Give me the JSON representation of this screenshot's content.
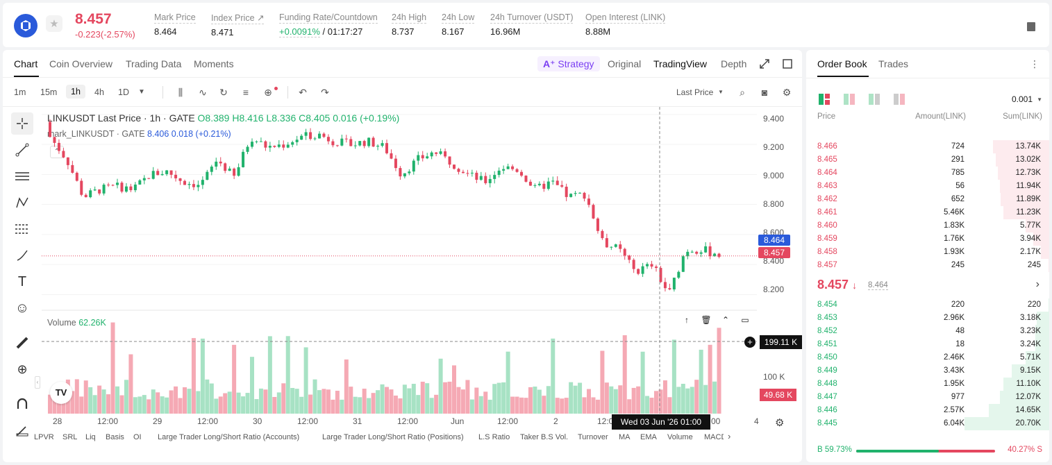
{
  "header": {
    "last_price": "8.457",
    "change": "-0.223(-2.57%)",
    "stats": [
      {
        "label": "Mark Price",
        "value": "8.464"
      },
      {
        "label": "Index Price ↗",
        "value": "8.471"
      },
      {
        "label": "Funding Rate/Countdown",
        "value_green": "+0.0091%",
        "value": " / 01:17:27"
      },
      {
        "label": "24h High",
        "value": "8.737"
      },
      {
        "label": "24h Low",
        "value": "8.167"
      },
      {
        "label": "24h Turnover (USDT)",
        "value": "16.96M"
      },
      {
        "label": "Open Interest (LINK)",
        "value": "8.88M"
      }
    ]
  },
  "chart_tabs": [
    "Chart",
    "Coin Overview",
    "Trading Data",
    "Moments"
  ],
  "strategy_label": "Strategy",
  "view_tabs": [
    "Original",
    "TradingView",
    "Depth"
  ],
  "timeframes": [
    "1m",
    "15m",
    "1h",
    "4h",
    "1D"
  ],
  "price_type": "Last Price",
  "legend": {
    "title": "LINKUSDT Last Price · 1h · GATE",
    "o": "O8.389",
    "h": "H8.416",
    "l": "L8.336",
    "c": "C8.405",
    "chg": "0.016 (+0.19%)",
    "mark_name": "mark_LINKUSDT · GATE",
    "mark_val": "8.406",
    "mark_chg": "0.018 (+0.21%)"
  },
  "volume_legend": {
    "label": "Volume",
    "value": "62.26K"
  },
  "y_axis": [
    "9.400",
    "9.200",
    "9.000",
    "8.800",
    "8.600",
    "8.400",
    "8.200"
  ],
  "y_tags": {
    "mark": "8.464",
    "last": "8.457"
  },
  "volume_axis": {
    "label": "100 K",
    "crosshair": "199.11 K",
    "last": "49.68 K"
  },
  "x_axis": [
    "28",
    "12:00",
    "29",
    "12:00",
    "30",
    "12:00",
    "31",
    "12:00",
    "Jun",
    "12:00",
    "2",
    "12:0",
    "00",
    "4"
  ],
  "crosshair_date": "Wed 03 Jun '26   01:00",
  "indicators": [
    "LPVR",
    "SRL",
    "Liq",
    "Basis",
    "OI",
    "Large Trader Long/Short Ratio (Accounts)",
    "Large Trader Long/Short Ratio (Positions)",
    "L.S Ratio",
    "Taker B.S Vol.",
    "Turnover",
    "MA",
    "EMA",
    "Volume",
    "MACD"
  ],
  "chart_data": {
    "type": "candlestick",
    "title": "LINKUSDT Last Price · 1h · GATE",
    "ylim": [
      8.1,
      9.45
    ],
    "description_points_close": [
      9.25,
      9.1,
      8.85,
      8.9,
      8.92,
      8.9,
      9.0,
      9.02,
      8.95,
      8.93,
      9.1,
      8.98,
      9.25,
      9.18,
      9.2,
      9.25,
      9.27,
      9.22,
      9.2,
      9.22,
      9.18,
      9.0,
      9.1,
      9.15,
      9.08,
      9.0,
      8.95,
      9.05,
      9.03,
      8.9,
      8.95,
      8.85,
      8.87,
      8.55,
      8.5,
      8.35,
      8.4,
      8.2,
      8.5,
      8.5,
      8.46
    ]
  },
  "order_book": {
    "tabs": [
      "Order Book",
      "Trades"
    ],
    "precision": "0.001",
    "headers": [
      "Price",
      "Amount(LINK)",
      "Sum(LINK)"
    ],
    "asks": [
      {
        "price": "8.466",
        "amount": "724",
        "sum": "13.74K",
        "depth": 0.66
      },
      {
        "price": "8.465",
        "amount": "291",
        "sum": "13.02K",
        "depth": 0.63
      },
      {
        "price": "8.464",
        "amount": "785",
        "sum": "12.73K",
        "depth": 0.61
      },
      {
        "price": "8.463",
        "amount": "56",
        "sum": "11.94K",
        "depth": 0.58
      },
      {
        "price": "8.462",
        "amount": "652",
        "sum": "11.89K",
        "depth": 0.57
      },
      {
        "price": "8.461",
        "amount": "5.46K",
        "sum": "11.23K",
        "depth": 0.54
      },
      {
        "price": "8.460",
        "amount": "1.83K",
        "sum": "5.77K",
        "depth": 0.28
      },
      {
        "price": "8.459",
        "amount": "1.76K",
        "sum": "3.94K",
        "depth": 0.19
      },
      {
        "price": "8.458",
        "amount": "1.93K",
        "sum": "2.17K",
        "depth": 0.1
      },
      {
        "price": "8.457",
        "amount": "245",
        "sum": "245",
        "depth": 0.01
      }
    ],
    "mid": {
      "price": "8.457",
      "arrow": "↓",
      "mark": "8.464"
    },
    "bids": [
      {
        "price": "8.454",
        "amount": "220",
        "sum": "220",
        "depth": 0.01
      },
      {
        "price": "8.453",
        "amount": "2.96K",
        "sum": "3.18K",
        "depth": 0.15
      },
      {
        "price": "8.452",
        "amount": "48",
        "sum": "3.23K",
        "depth": 0.16
      },
      {
        "price": "8.451",
        "amount": "18",
        "sum": "3.24K",
        "depth": 0.16
      },
      {
        "price": "8.450",
        "amount": "2.46K",
        "sum": "5.71K",
        "depth": 0.28
      },
      {
        "price": "8.449",
        "amount": "3.43K",
        "sum": "9.15K",
        "depth": 0.44
      },
      {
        "price": "8.448",
        "amount": "1.95K",
        "sum": "11.10K",
        "depth": 0.54
      },
      {
        "price": "8.447",
        "amount": "977",
        "sum": "12.07K",
        "depth": 0.58
      },
      {
        "price": "8.446",
        "amount": "2.57K",
        "sum": "14.65K",
        "depth": 0.71
      },
      {
        "price": "8.445",
        "amount": "6.04K",
        "sum": "20.70K",
        "depth": 1.0
      }
    ],
    "ratio": {
      "buy": "B 59.73%",
      "sell": "40.27% S",
      "buy_frac": 0.5973
    }
  },
  "colors": {
    "up": "#20b26c",
    "down": "#e4475f",
    "accent": "#2a5ada",
    "mark_tag": "#2a5ada"
  }
}
